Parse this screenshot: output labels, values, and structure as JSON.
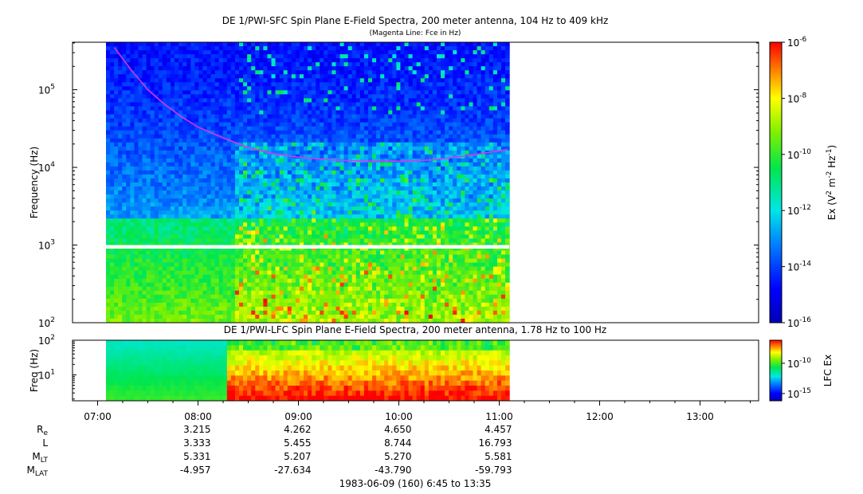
{
  "chart_data": [
    {
      "type": "heatmap",
      "title": "DE 1/PWI-SFC  Spin Plane E-Field Spectra, 200 meter antenna, 104 Hz to 409 kHz",
      "subtitle": "(Magenta Line: Fce in Hz)",
      "ylabel": "Frequency (Hz)",
      "yscale": "log",
      "ylim": [
        100,
        409000
      ],
      "ytick_labels": [
        {
          "base": "10",
          "exp": "2"
        },
        {
          "base": "10",
          "exp": "3"
        },
        {
          "base": "10",
          "exp": "4"
        },
        {
          "base": "10",
          "exp": "5"
        }
      ],
      "xlim": [
        "06:45",
        "13:35"
      ],
      "data_extent": [
        "07:05",
        "11:06"
      ],
      "data_gap_hz": [
        900,
        1000
      ],
      "colorbar": {
        "label": {
          "pre": "Ex (V",
          "sup1": "2",
          "mid": " m",
          "sup2": "-2",
          "mid2": " Hz",
          "sup3": "-1",
          "post": ")"
        },
        "scale": "log",
        "range": [
          1e-16,
          1e-06
        ],
        "tick_labels": [
          {
            "base": "10",
            "exp": "-6"
          },
          {
            "base": "10",
            "exp": "-8"
          },
          {
            "base": "10",
            "exp": "-10"
          },
          {
            "base": "10",
            "exp": "-12"
          },
          {
            "base": "10",
            "exp": "-14"
          },
          {
            "base": "10",
            "exp": "-16"
          }
        ]
      },
      "series": [
        {
          "name": "Fce",
          "color": "#e633e6",
          "x": [
            "07:10",
            "07:20",
            "07:30",
            "07:40",
            "07:50",
            "08:00",
            "08:15",
            "08:30",
            "08:45",
            "09:00",
            "09:20",
            "09:40",
            "10:00",
            "10:20",
            "10:40",
            "11:05"
          ],
          "y": [
            350000,
            180000,
            100000,
            65000,
            45000,
            33000,
            24000,
            18000,
            15000,
            13500,
            12500,
            12000,
            12000,
            12500,
            14000,
            17000
          ]
        }
      ]
    },
    {
      "type": "heatmap",
      "title": "DE 1/PWI-LFC  Spin Plane E-Field Spectra, 200 meter antenna, 1.78 Hz to 100 Hz",
      "ylabel": "Freq (Hz)",
      "yscale": "log",
      "ylim": [
        1.78,
        100
      ],
      "ytick_labels": [
        {
          "base": "10",
          "exp": "1"
        },
        {
          "base": "10",
          "exp": "2"
        }
      ],
      "xlim": [
        "06:45",
        "13:35"
      ],
      "data_extent": [
        "07:05",
        "11:06"
      ],
      "colorbar": {
        "label": "LFC Ex",
        "scale": "log",
        "tick_labels": [
          {
            "base": "10",
            "exp": "-10"
          },
          {
            "base": "10",
            "exp": "-15"
          }
        ]
      }
    }
  ],
  "x_axis": {
    "tick_labels": [
      "07:00",
      "08:00",
      "09:00",
      "10:00",
      "11:00",
      "12:00",
      "13:00"
    ]
  },
  "ephemeris": {
    "rows": [
      {
        "label": {
          "main": "R",
          "sub": "e"
        },
        "values": [
          "3.215",
          "4.262",
          "4.650",
          "4.457"
        ]
      },
      {
        "label": {
          "main": "L",
          "sub": ""
        },
        "values": [
          "3.333",
          "5.455",
          "8.744",
          "16.793"
        ]
      },
      {
        "label": {
          "main": "M",
          "sub": "LT"
        },
        "values": [
          "5.331",
          "5.207",
          "5.270",
          "5.581"
        ]
      },
      {
        "label": {
          "main": "M",
          "sub": "LAT"
        },
        "values": [
          "-4.957",
          "-27.634",
          "-43.790",
          "-59.793"
        ]
      }
    ],
    "times": [
      "08:00",
      "09:00",
      "10:00",
      "11:00"
    ]
  },
  "footer": "1983-06-09 (160) 6:45 to 13:35"
}
